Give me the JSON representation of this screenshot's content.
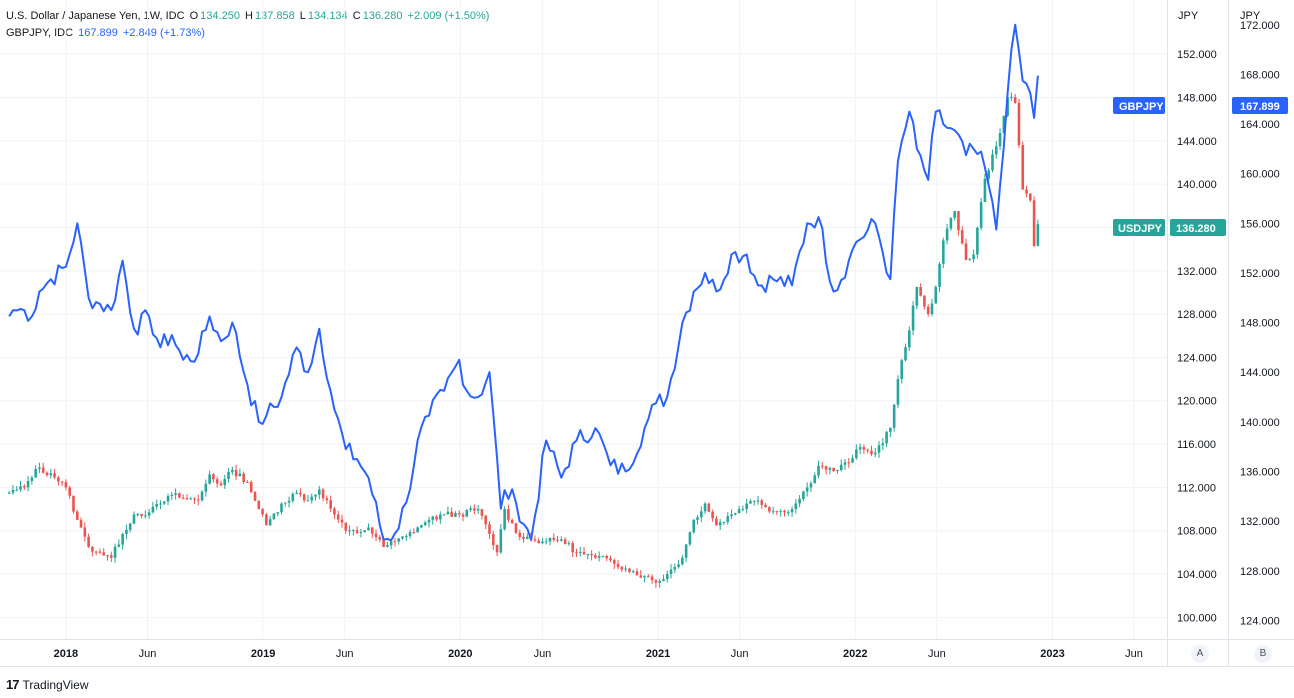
{
  "legend": {
    "usdjpy": {
      "title": "U.S. Dollar / Japanese Yen, 1W, IDC",
      "open_label": "O",
      "open": "134.250",
      "high_label": "H",
      "high": "137.858",
      "low_label": "L",
      "low": "134.134",
      "close_label": "C",
      "close": "136.280",
      "change": "+2.009 (+1.50%)"
    },
    "gbpjpy": {
      "title": "GBPJPY, IDC",
      "value": "167.899",
      "change": "+2.849 (+1.73%)"
    }
  },
  "axes": {
    "unit_a": "JPY",
    "unit_b": "JPY",
    "scale_a_button": "A",
    "scale_b_button": "B"
  },
  "badges": {
    "gbpjpy_name": "GBPJPY",
    "gbpjpy_value": "167.899",
    "usdjpy_name": "USDJPY",
    "usdjpy_value": "136.280"
  },
  "footer": {
    "logo": "17",
    "brand": "TradingView"
  },
  "colors": {
    "up": "#26a69a",
    "down": "#ef5350",
    "gbpjpy": "#2962ff",
    "usdjpy_badge": "#26a69a",
    "grid": "#f0f3fa"
  },
  "chart_data": {
    "type": "line",
    "title": "U.S. Dollar / Japanese Yen, 1W, IDC",
    "x_ticks": [
      "2018",
      "Jun",
      "2019",
      "Jun",
      "2020",
      "Jun",
      "2021",
      "Jun",
      "2022",
      "Jun",
      "2023",
      "Jun"
    ],
    "x_tick_dates": [
      "2018-01-01",
      "2018-06-01",
      "2019-01-01",
      "2019-06-01",
      "2020-01-01",
      "2020-06-01",
      "2021-01-01",
      "2021-06-01",
      "2022-01-01",
      "2022-06-01",
      "2023-01-01",
      "2023-06-01"
    ],
    "left_axis": {
      "label": "JPY",
      "ylim": [
        98,
        157
      ],
      "ticks": [
        "100.000",
        "104.000",
        "108.000",
        "112.000",
        "116.000",
        "120.000",
        "124.000",
        "128.000",
        "132.000",
        "136.000",
        "140.000",
        "144.000",
        "148.000",
        "152.000"
      ]
    },
    "right_axis": {
      "label": "JPY",
      "ylim": [
        122.5,
        174
      ],
      "ticks": [
        "124.000",
        "128.000",
        "132.000",
        "136.000",
        "140.000",
        "144.000",
        "148.000",
        "152.000",
        "156.000",
        "160.000",
        "164.000",
        "168.000",
        "172.000"
      ]
    },
    "grid": true,
    "series": [
      {
        "name": "USDJPY",
        "kind": "candlestick",
        "axis": "left",
        "points": [
          [
            "2017-09-18",
            111.5
          ],
          [
            "2017-10-16",
            112.0
          ],
          [
            "2017-11-06",
            113.7
          ],
          [
            "2017-12-04",
            113.3
          ],
          [
            "2018-01-01",
            112.0
          ],
          [
            "2018-01-22",
            109.0
          ],
          [
            "2018-02-12",
            106.5
          ],
          [
            "2018-03-05",
            106.0
          ],
          [
            "2018-03-26",
            105.5
          ],
          [
            "2018-04-16",
            107.7
          ],
          [
            "2018-05-07",
            109.5
          ],
          [
            "2018-06-04",
            109.7
          ],
          [
            "2018-06-25",
            110.5
          ],
          [
            "2018-07-16",
            111.3
          ],
          [
            "2018-08-06",
            111.0
          ],
          [
            "2018-09-03",
            110.8
          ],
          [
            "2018-09-24",
            113.2
          ],
          [
            "2018-10-15",
            112.2
          ],
          [
            "2018-11-05",
            113.6
          ],
          [
            "2018-12-03",
            112.5
          ],
          [
            "2018-12-24",
            110.0
          ],
          [
            "2019-01-07",
            108.5
          ],
          [
            "2019-02-04",
            110.5
          ],
          [
            "2019-03-04",
            111.5
          ],
          [
            "2019-03-25",
            110.8
          ],
          [
            "2019-04-15",
            111.8
          ],
          [
            "2019-05-13",
            109.5
          ],
          [
            "2019-06-03",
            108.0
          ],
          [
            "2019-06-24",
            107.8
          ],
          [
            "2019-07-15",
            108.3
          ],
          [
            "2019-08-12",
            106.5
          ],
          [
            "2019-09-02",
            107.0
          ],
          [
            "2019-09-23",
            107.5
          ],
          [
            "2019-10-14",
            108.3
          ],
          [
            "2019-11-04",
            109.0
          ],
          [
            "2019-12-02",
            109.5
          ],
          [
            "2019-12-30",
            109.5
          ],
          [
            "2020-02-03",
            110.0
          ],
          [
            "2020-03-09",
            106.0
          ],
          [
            "2020-03-23",
            110.0
          ],
          [
            "2020-04-13",
            107.8
          ],
          [
            "2020-05-11",
            107.2
          ],
          [
            "2020-06-08",
            107.0
          ],
          [
            "2020-07-06",
            107.2
          ],
          [
            "2020-08-03",
            106.0
          ],
          [
            "2020-09-07",
            105.5
          ],
          [
            "2020-10-05",
            105.3
          ],
          [
            "2020-11-02",
            104.5
          ],
          [
            "2020-12-07",
            103.8
          ],
          [
            "2020-12-28",
            103.2
          ],
          [
            "2021-01-18",
            104.0
          ],
          [
            "2021-02-15",
            105.5
          ],
          [
            "2021-03-08",
            109.0
          ],
          [
            "2021-03-29",
            110.5
          ],
          [
            "2021-04-19",
            108.5
          ],
          [
            "2021-05-17",
            109.5
          ],
          [
            "2021-06-14",
            110.5
          ],
          [
            "2021-07-05",
            110.8
          ],
          [
            "2021-08-02",
            109.8
          ],
          [
            "2021-09-06",
            110.0
          ],
          [
            "2021-10-04",
            112.0
          ],
          [
            "2021-10-25",
            114.0
          ],
          [
            "2021-11-22",
            113.5
          ],
          [
            "2021-12-20",
            114.3
          ],
          [
            "2022-01-03",
            115.5
          ],
          [
            "2022-02-07",
            115.2
          ],
          [
            "2022-03-07",
            117.5
          ],
          [
            "2022-03-21",
            122.0
          ],
          [
            "2022-04-11",
            126.5
          ],
          [
            "2022-04-25",
            130.5
          ],
          [
            "2022-05-16",
            128.0
          ],
          [
            "2022-05-30",
            130.5
          ],
          [
            "2022-06-13",
            134.8
          ],
          [
            "2022-07-04",
            137.5
          ],
          [
            "2022-07-25",
            133.0
          ],
          [
            "2022-08-08",
            133.5
          ],
          [
            "2022-08-29",
            140.5
          ],
          [
            "2022-09-19",
            143.5
          ],
          [
            "2022-10-10",
            148.0
          ],
          [
            "2022-10-24",
            147.5
          ],
          [
            "2022-11-07",
            139.5
          ],
          [
            "2022-11-21",
            138.5
          ],
          [
            "2022-11-28",
            134.3
          ],
          [
            "2022-12-05",
            136.3
          ]
        ]
      },
      {
        "name": "GBPJPY",
        "kind": "line",
        "axis": "right",
        "points": [
          [
            "2017-09-18",
            148.5
          ],
          [
            "2017-09-25",
            149.0
          ],
          [
            "2017-10-16",
            149.0
          ],
          [
            "2017-10-30",
            148.5
          ],
          [
            "2017-11-13",
            150.5
          ],
          [
            "2017-12-04",
            151.5
          ],
          [
            "2018-01-01",
            152.5
          ],
          [
            "2018-01-22",
            156.0
          ],
          [
            "2018-02-12",
            150.0
          ],
          [
            "2018-03-05",
            149.5
          ],
          [
            "2018-03-26",
            149.0
          ],
          [
            "2018-04-16",
            153.0
          ],
          [
            "2018-05-07",
            147.5
          ],
          [
            "2018-06-04",
            148.5
          ],
          [
            "2018-06-25",
            146.0
          ],
          [
            "2018-07-16",
            147.0
          ],
          [
            "2018-08-06",
            145.0
          ],
          [
            "2018-09-03",
            145.5
          ],
          [
            "2018-09-24",
            148.5
          ],
          [
            "2018-10-15",
            146.5
          ],
          [
            "2018-11-05",
            148.0
          ],
          [
            "2018-12-03",
            143.0
          ],
          [
            "2018-12-24",
            140.0
          ],
          [
            "2019-01-07",
            140.5
          ],
          [
            "2019-02-04",
            142.0
          ],
          [
            "2019-03-04",
            146.0
          ],
          [
            "2019-03-25",
            144.0
          ],
          [
            "2019-04-15",
            147.5
          ],
          [
            "2019-05-13",
            141.0
          ],
          [
            "2019-06-03",
            137.8
          ],
          [
            "2019-06-24",
            137.0
          ],
          [
            "2019-07-15",
            135.5
          ],
          [
            "2019-08-12",
            130.5
          ],
          [
            "2019-09-02",
            131.0
          ],
          [
            "2019-09-23",
            133.5
          ],
          [
            "2019-10-14",
            138.5
          ],
          [
            "2019-11-04",
            140.5
          ],
          [
            "2019-12-02",
            142.5
          ],
          [
            "2019-12-30",
            145.0
          ],
          [
            "2020-01-13",
            142.5
          ],
          [
            "2020-02-03",
            142.0
          ],
          [
            "2020-02-24",
            144.0
          ],
          [
            "2020-03-16",
            133.0
          ],
          [
            "2020-03-23",
            134.5
          ],
          [
            "2020-04-13",
            133.5
          ],
          [
            "2020-05-11",
            130.5
          ],
          [
            "2020-06-08",
            138.5
          ],
          [
            "2020-07-06",
            135.5
          ],
          [
            "2020-08-03",
            138.5
          ],
          [
            "2020-09-07",
            139.5
          ],
          [
            "2020-10-05",
            136.5
          ],
          [
            "2020-11-02",
            136.0
          ],
          [
            "2020-12-07",
            139.5
          ],
          [
            "2020-12-28",
            141.5
          ],
          [
            "2021-01-18",
            142.0
          ],
          [
            "2021-02-15",
            148.0
          ],
          [
            "2021-03-08",
            150.5
          ],
          [
            "2021-03-29",
            152.0
          ],
          [
            "2021-04-19",
            150.5
          ],
          [
            "2021-05-17",
            153.5
          ],
          [
            "2021-06-14",
            153.5
          ],
          [
            "2021-07-05",
            151.0
          ],
          [
            "2021-08-02",
            151.5
          ],
          [
            "2021-09-06",
            151.0
          ],
          [
            "2021-10-04",
            156.0
          ],
          [
            "2021-10-25",
            156.5
          ],
          [
            "2021-11-22",
            150.5
          ],
          [
            "2021-12-20",
            153.0
          ],
          [
            "2022-01-03",
            154.5
          ],
          [
            "2022-02-07",
            156.0
          ],
          [
            "2022-03-07",
            151.5
          ],
          [
            "2022-03-21",
            161.0
          ],
          [
            "2022-04-11",
            165.0
          ],
          [
            "2022-04-25",
            162.0
          ],
          [
            "2022-05-16",
            159.5
          ],
          [
            "2022-05-30",
            165.0
          ],
          [
            "2022-06-13",
            164.0
          ],
          [
            "2022-07-04",
            163.5
          ],
          [
            "2022-07-25",
            161.5
          ],
          [
            "2022-08-08",
            162.0
          ],
          [
            "2022-08-29",
            160.5
          ],
          [
            "2022-09-19",
            155.5
          ],
          [
            "2022-10-10",
            166.5
          ],
          [
            "2022-10-24",
            172.0
          ],
          [
            "2022-11-07",
            167.5
          ],
          [
            "2022-11-21",
            166.5
          ],
          [
            "2022-11-28",
            164.5
          ],
          [
            "2022-12-05",
            167.9
          ]
        ]
      }
    ]
  }
}
